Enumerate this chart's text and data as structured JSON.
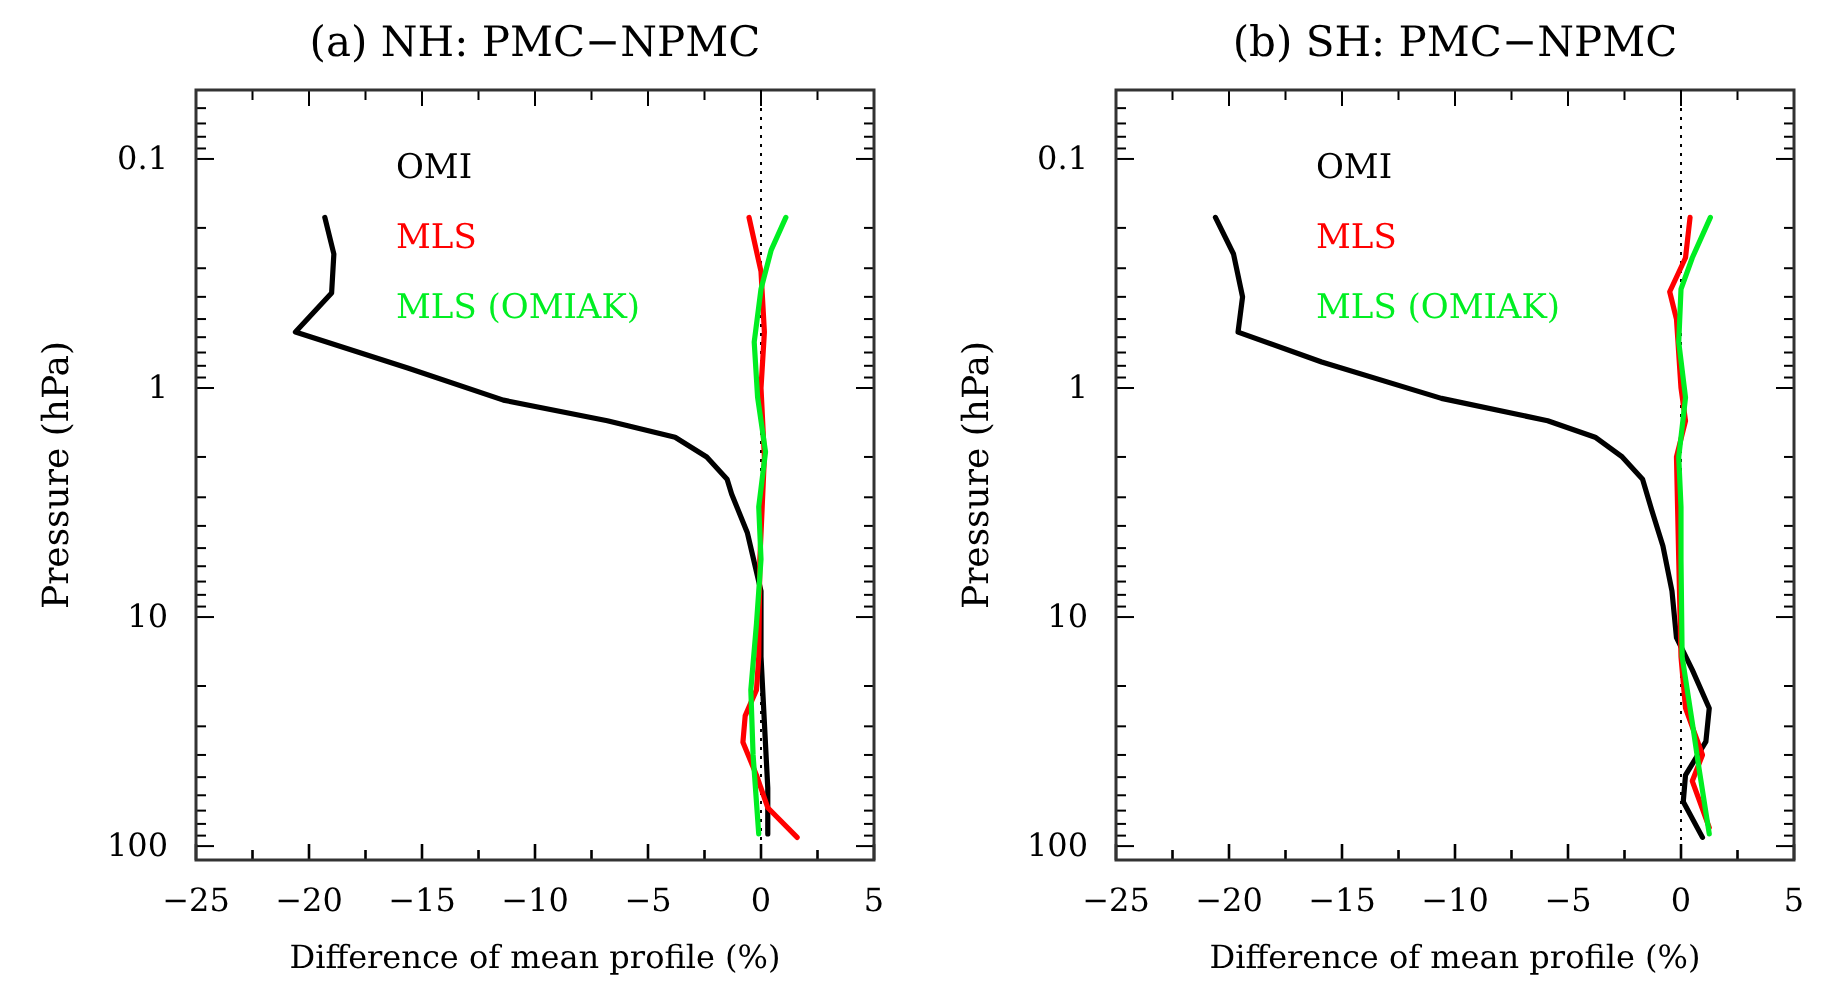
{
  "chart_data": [
    {
      "type": "line",
      "title": "(a) NH: PMC−NPMC",
      "xlabel": "Difference of mean profile (%)",
      "ylabel": "Pressure (hPa)",
      "log": "y",
      "legend": "top left",
      "line_style": "solid",
      "marker": "none",
      "xlim": [
        -25,
        5
      ],
      "ylim": [
        115,
        0.05
      ],
      "xticks": [
        -25,
        {
          "value": -22.5,
          "label": null
        },
        -20,
        {
          "value": -17.5,
          "label": null
        },
        -15,
        {
          "value": -12.5,
          "label": null
        },
        -10,
        {
          "value": -7.5,
          "label": null
        },
        -5,
        {
          "value": -2.5,
          "label": null
        },
        0,
        {
          "value": 2.5,
          "label": null
        },
        5
      ],
      "yticks": [
        {
          "value": 0.1,
          "label": "0.1"
        },
        1,
        10,
        100
      ],
      "ref_lines": [
        {
          "axis": "x",
          "value": 0,
          "line_style": "dotted",
          "color": "#000000"
        }
      ],
      "series": [
        {
          "name": "OMI",
          "color": "#000000",
          "x": [
            -19.3,
            -18.9,
            -19.0,
            -20.6,
            -15.6,
            -11.4,
            -6.8,
            -3.8,
            -2.4,
            -1.5,
            -1.3,
            -0.6,
            0,
            0,
            0.15,
            0.3,
            0.3
          ],
          "values": [
            0.18,
            0.26,
            0.385,
            0.57,
            0.82,
            1.13,
            1.39,
            1.64,
            2.0,
            2.5,
            2.9,
            4.3,
            7.7,
            14.9,
            28.9,
            55.8,
            88.5
          ]
        },
        {
          "name": "MLS",
          "color": "#ff0000",
          "x": [
            -0.53,
            0,
            0.15,
            0,
            0.15,
            -0.05,
            -0.1,
            -0.2,
            -0.7,
            -0.8,
            -0.2,
            0.3,
            1.6
          ],
          "values": [
            0.18,
            0.31,
            0.57,
            1.0,
            2.0,
            5.6,
            14.9,
            20.8,
            27,
            35.2,
            49,
            68,
            91.6
          ]
        },
        {
          "name": "MLS (OMIAK)",
          "color": "#00ee22",
          "x": [
            1.1,
            0.45,
            0,
            -0.3,
            -0.15,
            0.2,
            -0.1,
            0,
            -0.2,
            -0.45,
            -0.35,
            -0.1
          ],
          "values": [
            0.18,
            0.25,
            0.37,
            0.63,
            1.1,
            1.9,
            3.3,
            5.6,
            10.7,
            20.8,
            40,
            88.5
          ]
        }
      ]
    },
    {
      "type": "line",
      "title": "(b) SH: PMC−NPMC",
      "xlabel": "Difference of mean profile (%)",
      "ylabel": "Pressure (hPa)",
      "log": "y",
      "legend": "top left",
      "line_style": "solid",
      "marker": "none",
      "xlim": [
        -25,
        5
      ],
      "ylim": [
        115,
        0.05
      ],
      "xticks": [
        -25,
        {
          "value": -22.5,
          "label": null
        },
        -20,
        {
          "value": -17.5,
          "label": null
        },
        -15,
        {
          "value": -12.5,
          "label": null
        },
        -10,
        {
          "value": -7.5,
          "label": null
        },
        -5,
        {
          "value": -2.5,
          "label": null
        },
        0,
        {
          "value": 2.5,
          "label": null
        },
        5
      ],
      "yticks": [
        {
          "value": 0.1,
          "label": "0.1"
        },
        1,
        10,
        100
      ],
      "ref_lines": [
        {
          "axis": "x",
          "value": 0,
          "line_style": "dotted",
          "color": "#000000"
        }
      ],
      "series": [
        {
          "name": "OMI",
          "color": "#000000",
          "x": [
            -20.6,
            -19.8,
            -19.4,
            -19.6,
            -15.9,
            -10.6,
            -5.9,
            -3.8,
            -2.6,
            -1.7,
            -1.3,
            -0.8,
            -0.4,
            -0.2,
            0.5,
            1.25,
            1.1,
            0.2,
            0.1,
            0.95
          ],
          "values": [
            0.18,
            0.26,
            0.4,
            0.57,
            0.77,
            1.11,
            1.39,
            1.64,
            2.0,
            2.5,
            3.4,
            4.9,
            7.7,
            12.3,
            17,
            25,
            35,
            49,
            64,
            91.6
          ]
        },
        {
          "name": "MLS",
          "color": "#ff0000",
          "x": [
            0.4,
            0.2,
            -0.5,
            -0.2,
            0,
            0.2,
            -0.2,
            -0.1,
            0,
            0.2,
            0.95,
            0.5,
            1.25
          ],
          "values": [
            0.18,
            0.27,
            0.38,
            0.5,
            1.0,
            1.39,
            2.0,
            5.6,
            14.9,
            25,
            40,
            52,
            83
          ]
        },
        {
          "name": "MLS (OMIAK)",
          "color": "#00ee22",
          "x": [
            1.3,
            0.5,
            0,
            -0.1,
            0.2,
            -0.1,
            0,
            0,
            0.05,
            0.5,
            0.8,
            1.25
          ],
          "values": [
            0.18,
            0.27,
            0.37,
            0.63,
            1.1,
            2.0,
            3.3,
            5.6,
            14.9,
            28.9,
            46,
            88.5
          ]
        }
      ]
    }
  ]
}
